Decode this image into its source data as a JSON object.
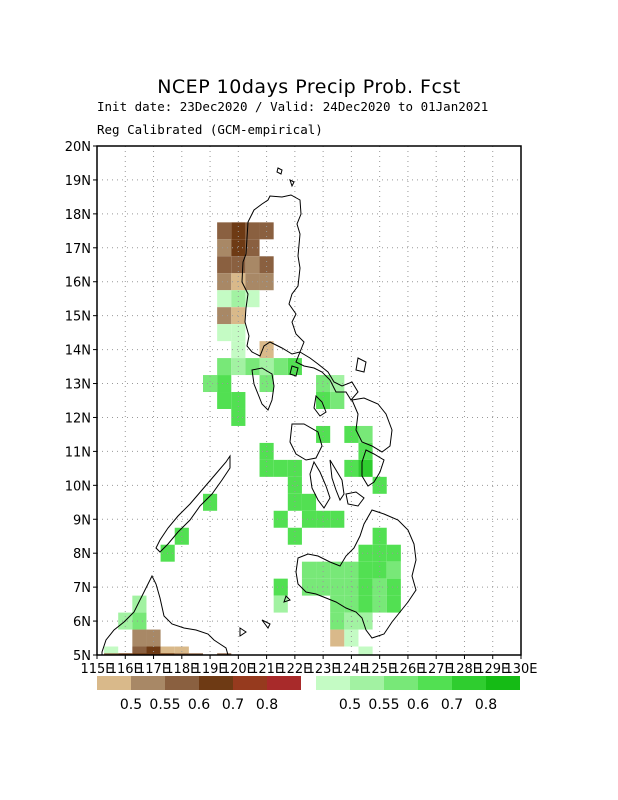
{
  "title": "NCEP 10days Precip Prob. Fcst",
  "subtitle1": "Init date: 23Dec2020 / Valid: 24Dec2020 to 01Jan2021",
  "subtitle2": "Reg Calibrated (GCM-empirical)",
  "chart_data": {
    "type": "heatmap",
    "map": "Philippines",
    "projection": "lon-lat",
    "xlim": [
      115,
      130
    ],
    "ylim": [
      5,
      20
    ],
    "grid_step_deg": 0.5,
    "grid": true,
    "x_ticks": [
      "115E",
      "116E",
      "117E",
      "118E",
      "119E",
      "120E",
      "121E",
      "122E",
      "123E",
      "124E",
      "125E",
      "126E",
      "127E",
      "128E",
      "129E",
      "130E"
    ],
    "y_ticks": [
      "5N",
      "6N",
      "7N",
      "8N",
      "9N",
      "10N",
      "11N",
      "12N",
      "13N",
      "14N",
      "15N",
      "16N",
      "17N",
      "18N",
      "19N",
      "20N"
    ],
    "legend_dry": {
      "colors": [
        "#d9b98a",
        "#a88866",
        "#8a6040",
        "#6e3a14",
        "#963a1e",
        "#a82a2a"
      ],
      "labels": [
        "0.5",
        "0.55",
        "0.6",
        "0.7",
        "0.8"
      ]
    },
    "legend_wet": {
      "colors": [
        "#c4fbc4",
        "#a2f2a2",
        "#78e878",
        "#52e052",
        "#2fcd2f",
        "#15bb15"
      ],
      "labels": [
        "0.5",
        "0.55",
        "0.6",
        "0.7",
        "0.8"
      ]
    },
    "cells": [
      {
        "lon": 119.5,
        "lat": 17.5,
        "level": "dry-0.6"
      },
      {
        "lon": 120.0,
        "lat": 17.5,
        "level": "dry-0.7"
      },
      {
        "lon": 120.5,
        "lat": 17.5,
        "level": "dry-0.6"
      },
      {
        "lon": 121.0,
        "lat": 17.5,
        "level": "dry-0.6"
      },
      {
        "lon": 119.5,
        "lat": 17.0,
        "level": "dry-0.55"
      },
      {
        "lon": 120.0,
        "lat": 17.0,
        "level": "dry-0.7"
      },
      {
        "lon": 120.5,
        "lat": 17.0,
        "level": "dry-0.6"
      },
      {
        "lon": 119.5,
        "lat": 16.5,
        "level": "dry-0.6"
      },
      {
        "lon": 120.0,
        "lat": 16.5,
        "level": "dry-0.6"
      },
      {
        "lon": 120.5,
        "lat": 16.5,
        "level": "dry-0.55"
      },
      {
        "lon": 121.0,
        "lat": 16.5,
        "level": "dry-0.6"
      },
      {
        "lon": 119.5,
        "lat": 16.0,
        "level": "dry-0.55"
      },
      {
        "lon": 120.0,
        "lat": 16.0,
        "level": "dry-0.5"
      },
      {
        "lon": 120.5,
        "lat": 16.0,
        "level": "dry-0.55"
      },
      {
        "lon": 121.0,
        "lat": 16.0,
        "level": "dry-0.55"
      },
      {
        "lon": 119.5,
        "lat": 15.5,
        "level": "wet-0.5"
      },
      {
        "lon": 120.0,
        "lat": 15.5,
        "level": "wet-0.55"
      },
      {
        "lon": 120.5,
        "lat": 15.5,
        "level": "wet-0.5"
      },
      {
        "lon": 119.5,
        "lat": 15.0,
        "level": "dry-0.55"
      },
      {
        "lon": 120.0,
        "lat": 15.0,
        "level": "dry-0.5"
      },
      {
        "lon": 119.5,
        "lat": 14.5,
        "level": "wet-0.5"
      },
      {
        "lon": 120.0,
        "lat": 14.5,
        "level": "wet-0.5"
      },
      {
        "lon": 120.0,
        "lat": 14.0,
        "level": "wet-0.5"
      },
      {
        "lon": 121.0,
        "lat": 14.0,
        "level": "dry-0.5"
      },
      {
        "lon": 119.5,
        "lat": 13.5,
        "level": "wet-0.6"
      },
      {
        "lon": 120.0,
        "lat": 13.5,
        "level": "wet-0.55"
      },
      {
        "lon": 120.5,
        "lat": 13.5,
        "level": "wet-0.6"
      },
      {
        "lon": 121.0,
        "lat": 13.5,
        "level": "wet-0.55"
      },
      {
        "lon": 121.5,
        "lat": 13.5,
        "level": "wet-0.6"
      },
      {
        "lon": 122.0,
        "lat": 13.5,
        "level": "wet-0.7"
      },
      {
        "lon": 119.0,
        "lat": 13.0,
        "level": "wet-0.6"
      },
      {
        "lon": 119.5,
        "lat": 13.0,
        "level": "wet-0.7"
      },
      {
        "lon": 121.0,
        "lat": 13.0,
        "level": "wet-0.6"
      },
      {
        "lon": 123.0,
        "lat": 13.0,
        "level": "wet-0.6"
      },
      {
        "lon": 123.5,
        "lat": 13.0,
        "level": "wet-0.55"
      },
      {
        "lon": 119.5,
        "lat": 12.5,
        "level": "wet-0.7"
      },
      {
        "lon": 120.0,
        "lat": 12.5,
        "level": "wet-0.7"
      },
      {
        "lon": 123.0,
        "lat": 12.5,
        "level": "wet-0.7"
      },
      {
        "lon": 123.5,
        "lat": 12.5,
        "level": "wet-0.6"
      },
      {
        "lon": 120.0,
        "lat": 12.0,
        "level": "wet-0.7"
      },
      {
        "lon": 123.0,
        "lat": 11.5,
        "level": "wet-0.7"
      },
      {
        "lon": 124.0,
        "lat": 11.5,
        "level": "wet-0.7"
      },
      {
        "lon": 124.5,
        "lat": 11.5,
        "level": "wet-0.6"
      },
      {
        "lon": 121.0,
        "lat": 11.0,
        "level": "wet-0.7"
      },
      {
        "lon": 124.5,
        "lat": 11.0,
        "level": "wet-0.7"
      },
      {
        "lon": 121.0,
        "lat": 10.5,
        "level": "wet-0.7"
      },
      {
        "lon": 121.5,
        "lat": 10.5,
        "level": "wet-0.7"
      },
      {
        "lon": 122.0,
        "lat": 10.5,
        "level": "wet-0.7"
      },
      {
        "lon": 124.0,
        "lat": 10.5,
        "level": "wet-0.7"
      },
      {
        "lon": 124.5,
        "lat": 10.5,
        "level": "wet-0.8"
      },
      {
        "lon": 122.0,
        "lat": 10.0,
        "level": "wet-0.7"
      },
      {
        "lon": 125.0,
        "lat": 10.0,
        "level": "wet-0.7"
      },
      {
        "lon": 119.0,
        "lat": 9.5,
        "level": "wet-0.7"
      },
      {
        "lon": 122.0,
        "lat": 9.5,
        "level": "wet-0.7"
      },
      {
        "lon": 122.5,
        "lat": 9.5,
        "level": "wet-0.7"
      },
      {
        "lon": 121.5,
        "lat": 9.0,
        "level": "wet-0.7"
      },
      {
        "lon": 122.5,
        "lat": 9.0,
        "level": "wet-0.7"
      },
      {
        "lon": 123.0,
        "lat": 9.0,
        "level": "wet-0.7"
      },
      {
        "lon": 123.5,
        "lat": 9.0,
        "level": "wet-0.7"
      },
      {
        "lon": 118.0,
        "lat": 8.5,
        "level": "wet-0.7"
      },
      {
        "lon": 122.0,
        "lat": 8.5,
        "level": "wet-0.7"
      },
      {
        "lon": 125.0,
        "lat": 8.5,
        "level": "wet-0.7"
      },
      {
        "lon": 117.5,
        "lat": 8.0,
        "level": "wet-0.7"
      },
      {
        "lon": 124.5,
        "lat": 8.0,
        "level": "wet-0.7"
      },
      {
        "lon": 125.0,
        "lat": 8.0,
        "level": "wet-0.7"
      },
      {
        "lon": 125.5,
        "lat": 8.0,
        "level": "wet-0.7"
      },
      {
        "lon": 122.5,
        "lat": 7.5,
        "level": "wet-0.6"
      },
      {
        "lon": 123.0,
        "lat": 7.5,
        "level": "wet-0.6"
      },
      {
        "lon": 123.5,
        "lat": 7.5,
        "level": "wet-0.6"
      },
      {
        "lon": 124.0,
        "lat": 7.5,
        "level": "wet-0.6"
      },
      {
        "lon": 124.5,
        "lat": 7.5,
        "level": "wet-0.7"
      },
      {
        "lon": 125.0,
        "lat": 7.5,
        "level": "wet-0.7"
      },
      {
        "lon": 125.5,
        "lat": 7.5,
        "level": "wet-0.6"
      },
      {
        "lon": 121.5,
        "lat": 7.0,
        "level": "wet-0.7"
      },
      {
        "lon": 122.5,
        "lat": 7.0,
        "level": "wet-0.6"
      },
      {
        "lon": 123.0,
        "lat": 7.0,
        "level": "wet-0.6"
      },
      {
        "lon": 123.5,
        "lat": 7.0,
        "level": "wet-0.6"
      },
      {
        "lon": 124.0,
        "lat": 7.0,
        "level": "wet-0.6"
      },
      {
        "lon": 124.5,
        "lat": 7.0,
        "level": "wet-0.7"
      },
      {
        "lon": 125.0,
        "lat": 7.0,
        "level": "wet-0.6"
      },
      {
        "lon": 125.5,
        "lat": 7.0,
        "level": "wet-0.7"
      },
      {
        "lon": 116.5,
        "lat": 6.5,
        "level": "wet-0.55"
      },
      {
        "lon": 121.5,
        "lat": 6.5,
        "level": "wet-0.55"
      },
      {
        "lon": 123.5,
        "lat": 6.5,
        "level": "wet-0.6"
      },
      {
        "lon": 124.0,
        "lat": 6.5,
        "level": "wet-0.6"
      },
      {
        "lon": 124.5,
        "lat": 6.5,
        "level": "wet-0.7"
      },
      {
        "lon": 125.0,
        "lat": 6.5,
        "level": "wet-0.6"
      },
      {
        "lon": 125.5,
        "lat": 6.5,
        "level": "wet-0.7"
      },
      {
        "lon": 116.0,
        "lat": 6.0,
        "level": "wet-0.55"
      },
      {
        "lon": 116.5,
        "lat": 6.0,
        "level": "wet-0.6"
      },
      {
        "lon": 123.5,
        "lat": 6.0,
        "level": "wet-0.6"
      },
      {
        "lon": 124.0,
        "lat": 6.0,
        "level": "wet-0.55"
      },
      {
        "lon": 124.5,
        "lat": 6.0,
        "level": "wet-0.55"
      },
      {
        "lon": 116.5,
        "lat": 5.5,
        "level": "dry-0.55"
      },
      {
        "lon": 117.0,
        "lat": 5.5,
        "level": "dry-0.55"
      },
      {
        "lon": 123.5,
        "lat": 5.5,
        "level": "dry-0.5"
      },
      {
        "lon": 124.0,
        "lat": 5.5,
        "level": "wet-0.5"
      },
      {
        "lon": 115.5,
        "lat": 5.0,
        "level": "wet-0.5"
      },
      {
        "lon": 116.5,
        "lat": 5.0,
        "level": "dry-0.6"
      },
      {
        "lon": 117.0,
        "lat": 5.0,
        "level": "dry-0.7"
      },
      {
        "lon": 117.5,
        "lat": 5.0,
        "level": "dry-0.5"
      },
      {
        "lon": 118.0,
        "lat": 5.0,
        "level": "dry-0.5"
      },
      {
        "lon": 124.5,
        "lat": 5.0,
        "level": "wet-0.5"
      },
      {
        "lon": 115.5,
        "lat": 4.8,
        "level": "dry-0.6"
      },
      {
        "lon": 116.0,
        "lat": 4.8,
        "level": "dry-0.7"
      },
      {
        "lon": 116.5,
        "lat": 4.8,
        "level": "dry-0.7"
      },
      {
        "lon": 117.0,
        "lat": 4.8,
        "level": "dry-0.7"
      },
      {
        "lon": 117.5,
        "lat": 4.8,
        "level": "dry-0.7"
      },
      {
        "lon": 118.0,
        "lat": 4.8,
        "level": "dry-0.6"
      },
      {
        "lon": 118.5,
        "lat": 4.8,
        "level": "dry-0.6"
      },
      {
        "lon": 119.5,
        "lat": 4.8,
        "level": "dry-0.6"
      }
    ]
  }
}
